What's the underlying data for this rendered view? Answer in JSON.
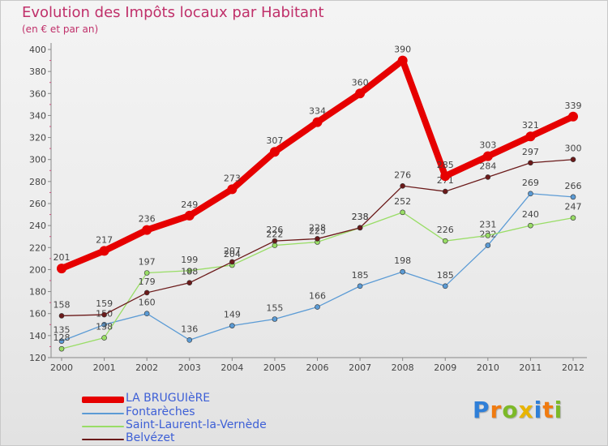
{
  "header": {
    "title": "Evolution des Impôts locaux par Habitant",
    "subtitle": "(en € et par an)"
  },
  "chart_data": {
    "type": "line",
    "title": "Evolution des Impôts locaux par Habitant",
    "subtitle": "(en € et par an)",
    "xlabel": "",
    "ylabel": "",
    "categories": [
      "2000",
      "2001",
      "2002",
      "2003",
      "2004",
      "2005",
      "2006",
      "2007",
      "2008",
      "2009",
      "2010",
      "2011",
      "2012"
    ],
    "ylim": [
      120,
      400
    ],
    "yticks": [
      120,
      140,
      160,
      180,
      200,
      220,
      240,
      260,
      280,
      300,
      320,
      340,
      360,
      380,
      400
    ],
    "grid": false,
    "legend_position": "bottom-left",
    "series": [
      {
        "name": "LA BRUGUIèRE",
        "color": "#e60000",
        "emphasis": true,
        "values": [
          201,
          217,
          236,
          249,
          273,
          307,
          334,
          360,
          390,
          285,
          303,
          321,
          339
        ]
      },
      {
        "name": "Fontarèches",
        "color": "#5b9bd5",
        "emphasis": false,
        "values": [
          135,
          150,
          160,
          136,
          149,
          155,
          166,
          185,
          198,
          185,
          222,
          269,
          266
        ]
      },
      {
        "name": "Saint-Laurent-la-Vernède",
        "color": "#99dd66",
        "emphasis": false,
        "values": [
          128,
          138,
          197,
          199,
          204,
          222,
          225,
          238,
          252,
          226,
          231,
          240,
          247
        ]
      },
      {
        "name": "Belvézet",
        "color": "#6b1a1a",
        "emphasis": false,
        "values": [
          158,
          159,
          179,
          188,
          207,
          226,
          228,
          238,
          276,
          271,
          284,
          297,
          300
        ]
      }
    ]
  },
  "logo": {
    "letters": [
      "P",
      "r",
      "o",
      "x",
      "i",
      "t",
      "i"
    ],
    "colors": [
      "#2f7fd8",
      "#f07b10",
      "#7cb928",
      "#e8b400",
      "#2f7fd8",
      "#f07b10",
      "#7cb928"
    ]
  }
}
